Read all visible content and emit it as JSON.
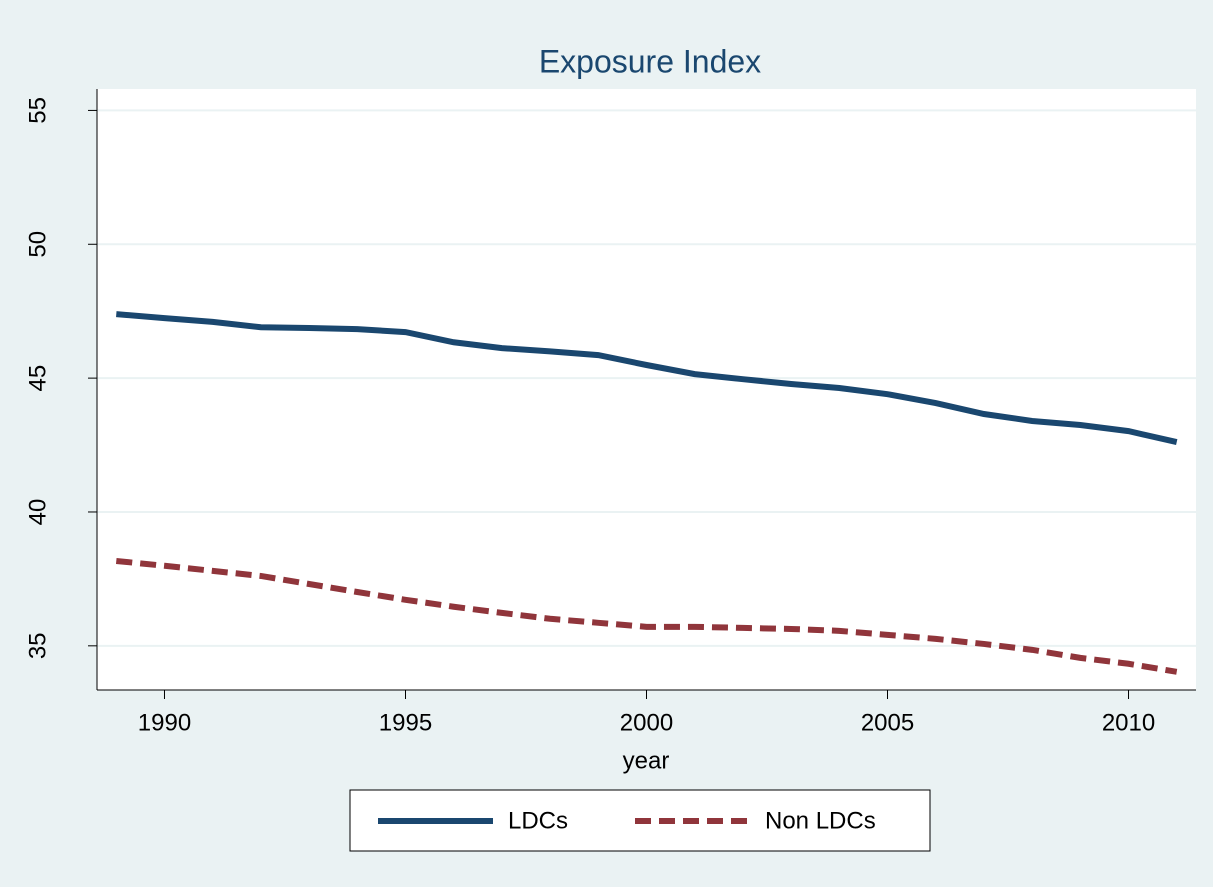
{
  "chart_data": {
    "type": "line",
    "title": "Exposure Index",
    "x_label": "year",
    "x": [
      1989,
      1990,
      1991,
      1992,
      1993,
      1994,
      1995,
      1996,
      1997,
      1998,
      1999,
      2000,
      2001,
      2002,
      2003,
      2004,
      2005,
      2006,
      2007,
      2008,
      2009,
      2010,
      2011
    ],
    "series": [
      {
        "name": "LDCs",
        "color": "#1a476f",
        "line_style": "solid",
        "values": [
          47.39,
          47.24,
          47.1,
          46.9,
          46.87,
          46.83,
          46.72,
          46.34,
          46.12,
          46.0,
          45.86,
          45.49,
          45.15,
          44.96,
          44.78,
          44.63,
          44.4,
          44.07,
          43.66,
          43.4,
          43.25,
          43.02,
          42.61
        ]
      },
      {
        "name": "Non LDCs",
        "color": "#90353b",
        "line_style": "dashed",
        "values": [
          38.17,
          37.99,
          37.8,
          37.61,
          37.31,
          37.01,
          36.72,
          36.46,
          36.23,
          36.01,
          35.86,
          35.71,
          35.71,
          35.67,
          35.63,
          35.56,
          35.41,
          35.26,
          35.07,
          34.85,
          34.55,
          34.33,
          34.03
        ]
      }
    ],
    "xlim": [
      1988.6,
      2011.4
    ],
    "xticks": [
      1990,
      1995,
      2000,
      2005,
      2010
    ],
    "ylim": [
      33.35,
      55.8
    ],
    "yticks": [
      35,
      40,
      45,
      50,
      55
    ],
    "grid": true,
    "legend": "bottom"
  }
}
